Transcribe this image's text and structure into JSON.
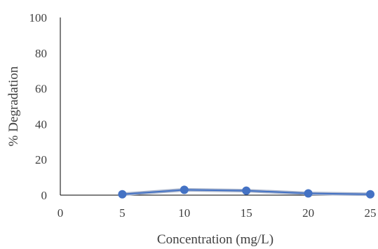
{
  "chart_data": {
    "type": "line",
    "title": "",
    "xlabel": "Concentration (mg/L)",
    "ylabel": "% Degradation",
    "x": [
      5,
      10,
      15,
      20,
      25
    ],
    "series": [
      {
        "values": [
          0.5,
          3.0,
          2.5,
          1.0,
          0.5
        ]
      }
    ],
    "xlim": [
      0,
      25
    ],
    "ylim": [
      0,
      100
    ],
    "xticks": [
      "0",
      "5",
      "10",
      "15",
      "20",
      "25"
    ],
    "yticks": [
      "0",
      "20",
      "40",
      "60",
      "80",
      "100"
    ],
    "grid": false,
    "legend": "none",
    "colors": {
      "series": "#4472c4",
      "line_halo": "#a8b4cc",
      "axis": "#000000",
      "text": "#404040"
    }
  }
}
